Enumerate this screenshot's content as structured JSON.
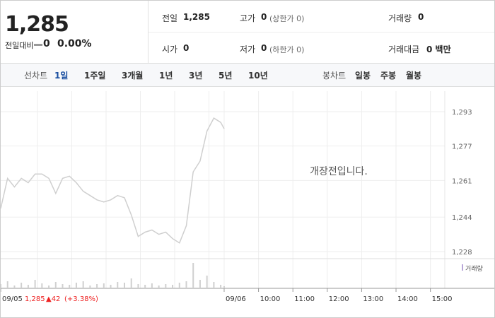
{
  "header": {
    "price": "1,285",
    "change_label": "전일대비",
    "change": "0",
    "change_pct": "0.00%"
  },
  "summary": [
    [
      {
        "label": "전일",
        "value": "1,285"
      },
      {
        "label": "고가",
        "value": "0",
        "note": "(상한가 0)"
      },
      {
        "label": "거래량",
        "value": "0"
      }
    ],
    [
      {
        "label": "시가",
        "value": "0"
      },
      {
        "label": "저가",
        "value": "0",
        "note": "(하한가 0)"
      },
      {
        "label": "거래대금",
        "value": "0 백만"
      }
    ]
  ],
  "tabs": {
    "line_label": "선차트",
    "line_tabs": [
      "1일",
      "1주일",
      "3개월",
      "1년",
      "3년",
      "5년",
      "10년"
    ],
    "candle_label": "봉차트",
    "candle_tabs": [
      "일봉",
      "주봉",
      "월봉"
    ]
  },
  "chart_data": {
    "type": "line",
    "color": "#cfcfcf",
    "x": [
      -6.5,
      -6.3,
      -6.1,
      -5.9,
      -5.7,
      -5.5,
      -5.3,
      -5.1,
      -4.9,
      -4.7,
      -4.5,
      -4.3,
      -4.1,
      -3.9,
      -3.7,
      -3.5,
      -3.3,
      -3.1,
      -2.9,
      -2.7,
      -2.5,
      -2.3,
      -2.1,
      -1.9,
      -1.7,
      -1.5,
      -1.3,
      -1.1,
      -0.9,
      -0.7,
      -0.5,
      -0.3,
      -0.1,
      0
    ],
    "values": [
      1248,
      1262,
      1258,
      1262,
      1260,
      1264,
      1264,
      1262,
      1255,
      1262,
      1263,
      1260,
      1256,
      1254,
      1252,
      1251,
      1252,
      1254,
      1253,
      1245,
      1235,
      1237,
      1238,
      1236,
      1237,
      1234,
      1232,
      1240,
      1265,
      1270,
      1284,
      1290,
      1288,
      1285
    ],
    "xlim": [
      -6.5,
      7.9
    ],
    "xticks": [
      {
        "value": -6.5,
        "label": "09/05"
      },
      {
        "value": 0,
        "label": "09/06"
      },
      {
        "value": 1,
        "label": "10:00"
      },
      {
        "value": 2,
        "label": "11:00"
      },
      {
        "value": 3,
        "label": "12:00"
      },
      {
        "value": 4,
        "label": "13:00"
      },
      {
        "value": 5,
        "label": "14:00"
      },
      {
        "value": 6,
        "label": "15:00"
      }
    ],
    "ylim": [
      1224.7,
      1302.5
    ],
    "yticks": [
      {
        "value": 1228,
        "label": "1,228"
      },
      {
        "value": 1244,
        "label": "1,244"
      },
      {
        "value": 1261,
        "label": "1,261"
      },
      {
        "value": 1277,
        "label": "1,277"
      },
      {
        "value": 1293,
        "label": "1,293"
      }
    ],
    "grid": true,
    "annotation": "개장전입니다.",
    "volume": {
      "name": "거래량",
      "color": "#d0d0d0",
      "values": [
        6,
        10,
        4,
        8,
        5,
        12,
        7,
        4,
        9,
        6,
        5,
        8,
        10,
        4,
        6,
        7,
        5,
        9,
        8,
        14,
        6,
        5,
        7,
        4,
        6,
        5,
        8,
        10,
        36,
        12,
        18,
        9,
        5,
        3
      ]
    },
    "last_info": {
      "date": "09/05",
      "price": "1,285",
      "change": "▲42",
      "change_pct": "(+3.38%)"
    }
  }
}
